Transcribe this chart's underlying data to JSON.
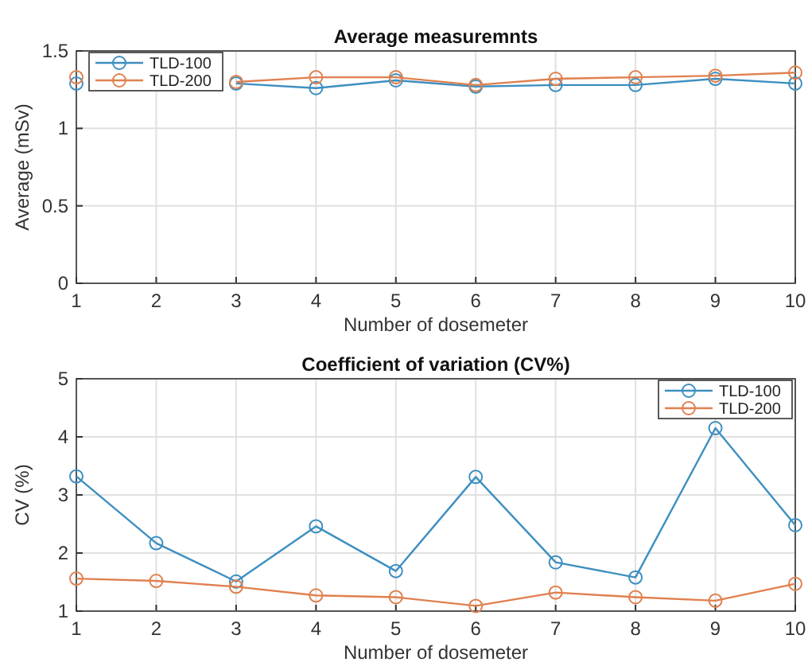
{
  "chart_data": [
    {
      "type": "line",
      "title": "Average measuremnts",
      "xlabel": "Number of dosemeter",
      "ylabel": "Average (mSv)",
      "x": [
        1,
        2,
        3,
        4,
        5,
        6,
        7,
        8,
        9,
        10
      ],
      "xlim": [
        1,
        10
      ],
      "xticks": [
        1,
        2,
        3,
        4,
        5,
        6,
        7,
        8,
        9,
        10
      ],
      "ylim": [
        0,
        1.5
      ],
      "yticks": [
        0,
        0.5,
        1,
        1.5
      ],
      "grid": true,
      "legend": "top left",
      "marker": "circle",
      "line_style": "solid",
      "series": [
        {
          "name": "TLD-100",
          "color": "#3d8fc0",
          "values": [
            1.29,
            null,
            1.29,
            1.26,
            1.31,
            1.27,
            1.28,
            1.28,
            1.32,
            1.29
          ]
        },
        {
          "name": "TLD-200",
          "color": "#e0804f",
          "values": [
            1.33,
            null,
            1.3,
            1.33,
            1.33,
            1.28,
            1.32,
            1.33,
            1.34,
            1.36
          ]
        }
      ]
    },
    {
      "type": "line",
      "title": "Coefficient of variation  (CV%)",
      "xlabel": "Number of dosemeter",
      "ylabel": "CV (%)",
      "x": [
        1,
        2,
        3,
        4,
        5,
        6,
        7,
        8,
        9,
        10
      ],
      "xlim": [
        1,
        10
      ],
      "xticks": [
        1,
        2,
        3,
        4,
        5,
        6,
        7,
        8,
        9,
        10
      ],
      "ylim": [
        1,
        5
      ],
      "yticks": [
        1,
        2,
        3,
        4,
        5
      ],
      "grid": true,
      "legend": "top right",
      "marker": "circle",
      "line_style": "solid",
      "series": [
        {
          "name": "TLD-100",
          "color": "#3d8fc0",
          "values": [
            3.32,
            2.17,
            1.51,
            2.46,
            1.69,
            3.31,
            1.84,
            1.58,
            4.15,
            2.48
          ]
        },
        {
          "name": "TLD-200",
          "color": "#e0804f",
          "values": [
            1.56,
            1.52,
            1.42,
            1.27,
            1.24,
            1.09,
            1.32,
            1.24,
            1.18,
            1.47
          ]
        }
      ]
    }
  ]
}
